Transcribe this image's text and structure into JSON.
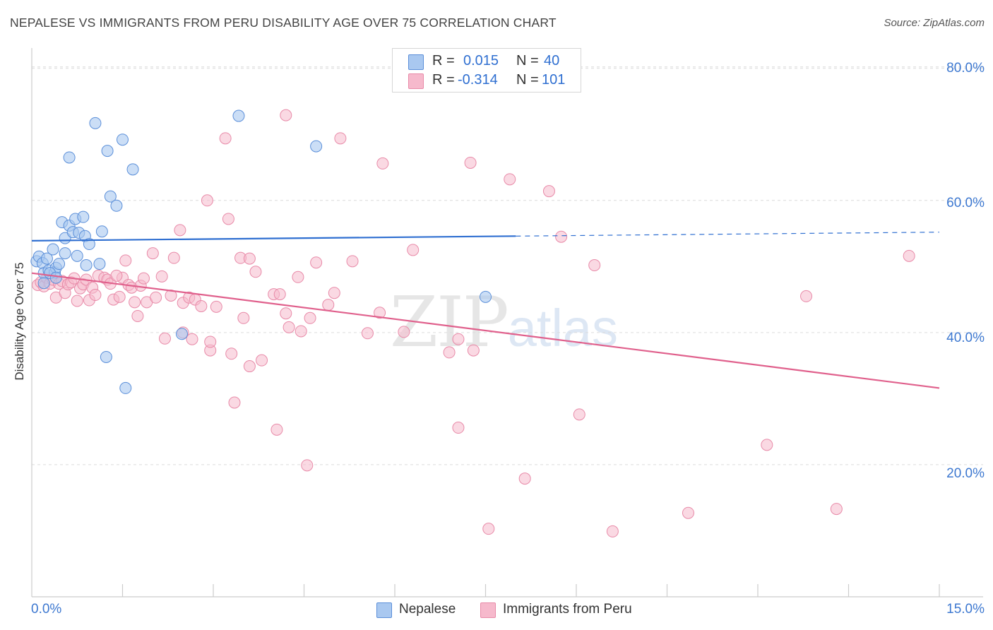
{
  "title": "NEPALESE VS IMMIGRANTS FROM PERU DISABILITY AGE OVER 75 CORRELATION CHART",
  "source": "Source: ZipAtlas.com",
  "watermark": {
    "zip": "ZIP",
    "atlas": "atlas"
  },
  "legend": {
    "rows": [
      {
        "r_label": "R =",
        "r_value": "0.015",
        "n_label": "N =",
        "n_value": "40",
        "color": "#a9c8f0"
      },
      {
        "r_label": "R =",
        "r_value": "-0.314",
        "n_label": "N =",
        "n_value": "101",
        "color": "#f6b9cc"
      }
    ]
  },
  "bottom_legend": [
    "Nepalese",
    "Immigrants from Peru"
  ],
  "colors": {
    "blue_fill": "#a9c8f0",
    "blue_stroke": "#5b8fd9",
    "blue_line": "#2f6fd1",
    "pink_fill": "#f6b9cc",
    "pink_stroke": "#e88aa8",
    "pink_line": "#e0608c",
    "grid": "#dcdcdc",
    "tick_text": "#3d78d0"
  },
  "chart_data": {
    "type": "scatter",
    "title": "NEPALESE VS IMMIGRANTS FROM PERU DISABILITY AGE OVER 75 CORRELATION CHART",
    "xlabel": "",
    "ylabel": "Disability Age Over 75",
    "xlim": [
      0,
      15
    ],
    "ylim": [
      0,
      82
    ],
    "x_tick_labels": [
      "0.0%",
      "15.0%"
    ],
    "y_ticks": [
      20,
      40,
      60,
      80
    ],
    "y_tick_labels": [
      "20.0%",
      "40.0%",
      "60.0%",
      "80.0%"
    ],
    "grid": "horizontal dashed",
    "legend_position": "top-center",
    "series": [
      {
        "name": "Nepalese",
        "r": 0.015,
        "n": 40,
        "points": [
          [
            0.08,
            50.8
          ],
          [
            0.12,
            51.5
          ],
          [
            0.18,
            50.5
          ],
          [
            0.2,
            49.0
          ],
          [
            0.25,
            51.2
          ],
          [
            0.28,
            49.4
          ],
          [
            0.35,
            52.6
          ],
          [
            0.38,
            49.1
          ],
          [
            0.4,
            49.8
          ],
          [
            0.45,
            50.4
          ],
          [
            0.5,
            56.7
          ],
          [
            0.55,
            52.0
          ],
          [
            0.55,
            54.3
          ],
          [
            0.62,
            56.2
          ],
          [
            0.68,
            55.2
          ],
          [
            0.72,
            57.2
          ],
          [
            0.75,
            51.6
          ],
          [
            0.78,
            55.1
          ],
          [
            0.85,
            57.5
          ],
          [
            0.88,
            54.6
          ],
          [
            0.95,
            53.4
          ],
          [
            0.62,
            66.5
          ],
          [
            1.05,
            71.7
          ],
          [
            1.12,
            50.4
          ],
          [
            1.16,
            55.3
          ],
          [
            1.25,
            67.5
          ],
          [
            1.3,
            60.6
          ],
          [
            1.4,
            59.2
          ],
          [
            1.5,
            69.2
          ],
          [
            1.67,
            64.7
          ],
          [
            1.23,
            36.3
          ],
          [
            1.55,
            31.6
          ],
          [
            2.48,
            39.8
          ],
          [
            3.42,
            72.8
          ],
          [
            4.7,
            68.2
          ],
          [
            7.5,
            45.4
          ],
          [
            0.2,
            47.5
          ],
          [
            0.3,
            49.0
          ],
          [
            0.4,
            48.3
          ],
          [
            0.9,
            50.2
          ]
        ]
      },
      {
        "name": "Immigrants from Peru",
        "r": -0.314,
        "n": 101,
        "points": [
          [
            0.1,
            47.2
          ],
          [
            0.15,
            47.6
          ],
          [
            0.2,
            47.0
          ],
          [
            0.25,
            48.3
          ],
          [
            0.3,
            47.4
          ],
          [
            0.35,
            48.0
          ],
          [
            0.4,
            45.3
          ],
          [
            0.45,
            47.4
          ],
          [
            0.5,
            47.8
          ],
          [
            0.55,
            46.0
          ],
          [
            0.6,
            47.3
          ],
          [
            0.65,
            47.6
          ],
          [
            0.7,
            48.2
          ],
          [
            0.75,
            44.8
          ],
          [
            0.8,
            46.7
          ],
          [
            0.85,
            47.3
          ],
          [
            0.9,
            48.0
          ],
          [
            0.95,
            44.9
          ],
          [
            1.0,
            46.8
          ],
          [
            1.05,
            45.7
          ],
          [
            1.1,
            48.6
          ],
          [
            1.2,
            48.3
          ],
          [
            1.25,
            48.0
          ],
          [
            1.3,
            47.4
          ],
          [
            1.35,
            45.0
          ],
          [
            1.45,
            45.4
          ],
          [
            1.5,
            48.3
          ],
          [
            1.55,
            50.9
          ],
          [
            1.6,
            47.2
          ],
          [
            1.65,
            46.8
          ],
          [
            1.7,
            44.6
          ],
          [
            1.75,
            42.5
          ],
          [
            1.8,
            47.1
          ],
          [
            1.85,
            48.2
          ],
          [
            1.9,
            44.6
          ],
          [
            2.0,
            52.0
          ],
          [
            2.05,
            45.3
          ],
          [
            2.15,
            48.5
          ],
          [
            2.2,
            39.1
          ],
          [
            2.3,
            45.6
          ],
          [
            2.35,
            51.3
          ],
          [
            2.45,
            55.5
          ],
          [
            2.5,
            40.0
          ],
          [
            2.5,
            44.5
          ],
          [
            2.6,
            45.3
          ],
          [
            2.65,
            39.0
          ],
          [
            2.7,
            45.0
          ],
          [
            2.8,
            44.0
          ],
          [
            2.9,
            60.0
          ],
          [
            2.95,
            37.3
          ],
          [
            3.05,
            43.9
          ],
          [
            3.2,
            69.4
          ],
          [
            3.25,
            57.2
          ],
          [
            3.3,
            36.8
          ],
          [
            3.45,
            51.3
          ],
          [
            3.5,
            42.2
          ],
          [
            3.6,
            51.2
          ],
          [
            3.7,
            49.2
          ],
          [
            3.8,
            35.8
          ],
          [
            4.0,
            45.8
          ],
          [
            4.1,
            45.8
          ],
          [
            4.2,
            42.9
          ],
          [
            4.25,
            40.8
          ],
          [
            4.4,
            48.4
          ],
          [
            4.45,
            40.2
          ],
          [
            4.6,
            42.2
          ],
          [
            4.7,
            50.6
          ],
          [
            4.9,
            44.2
          ],
          [
            5.0,
            46.0
          ],
          [
            5.1,
            69.4
          ],
          [
            5.3,
            50.8
          ],
          [
            5.55,
            39.9
          ],
          [
            5.75,
            43.0
          ],
          [
            5.8,
            65.6
          ],
          [
            6.15,
            40.1
          ],
          [
            6.3,
            52.5
          ],
          [
            6.9,
            37.0
          ],
          [
            7.05,
            25.6
          ],
          [
            7.05,
            39.0
          ],
          [
            7.25,
            65.7
          ],
          [
            7.3,
            37.3
          ],
          [
            7.9,
            63.2
          ],
          [
            8.15,
            17.9
          ],
          [
            8.55,
            61.4
          ],
          [
            8.75,
            54.5
          ],
          [
            9.05,
            27.6
          ],
          [
            9.3,
            50.2
          ],
          [
            4.2,
            72.9
          ],
          [
            3.6,
            34.9
          ],
          [
            3.35,
            29.4
          ],
          [
            4.05,
            25.3
          ],
          [
            4.55,
            19.9
          ],
          [
            7.55,
            10.3
          ],
          [
            9.6,
            9.9
          ],
          [
            10.85,
            12.7
          ],
          [
            12.15,
            23.0
          ],
          [
            12.8,
            45.5
          ],
          [
            13.3,
            13.3
          ],
          [
            14.5,
            51.6
          ],
          [
            1.4,
            48.6
          ],
          [
            2.95,
            38.6
          ]
        ]
      }
    ],
    "trend_lines": [
      {
        "series": "Nepalese",
        "solid": [
          [
            0,
            53.9
          ],
          [
            8.0,
            54.6
          ]
        ],
        "dashed": [
          [
            8.0,
            54.6
          ],
          [
            15.0,
            55.2
          ]
        ]
      },
      {
        "series": "Immigrants from Peru",
        "solid": [
          [
            0,
            49.0
          ],
          [
            15.0,
            31.6
          ]
        ]
      }
    ]
  }
}
